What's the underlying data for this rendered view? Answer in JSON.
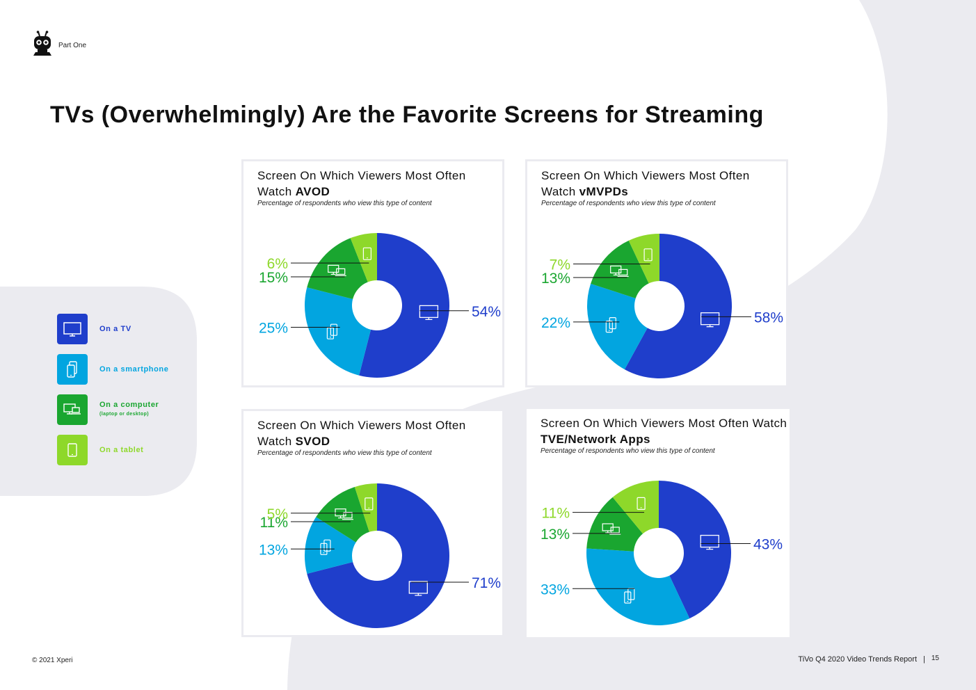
{
  "header": {
    "section": "Part One",
    "logo_icon": "tivo-robot-icon"
  },
  "title": "TVs (Overwhelmingly) Are the Favorite Screens for Streaming",
  "colors": {
    "tv": "#1f3ecb",
    "smartphone": "#02a5e0",
    "computer": "#1aa630",
    "tablet": "#8ed82a",
    "background_shape": "#ebebf0"
  },
  "legend": [
    {
      "key": "tv",
      "label": "On a TV",
      "sub": "",
      "icon": "tv-icon",
      "color": "#1f3ecb"
    },
    {
      "key": "smartphone",
      "label": "On a smartphone",
      "sub": "",
      "icon": "smartphone-icon",
      "color": "#02a5e0"
    },
    {
      "key": "computer",
      "label": "On a computer",
      "sub": "(laptop or desktop)",
      "icon": "computer-icon",
      "color": "#1aa630"
    },
    {
      "key": "tablet",
      "label": "On a tablet",
      "sub": "",
      "icon": "tablet-icon",
      "color": "#8ed82a"
    }
  ],
  "chart_data": [
    {
      "type": "pie",
      "subtype": "donut",
      "title_prefix": "Screen On Which Viewers Most Often Watch",
      "title_bold": "AVOD",
      "subtitle": "Percentage of respondents who view this type of content",
      "categories": [
        "On a TV",
        "On a smartphone",
        "On a computer",
        "On a tablet"
      ],
      "values": [
        54,
        25,
        15,
        6
      ],
      "labels": [
        "54%",
        "25%",
        "15%",
        "6%"
      ]
    },
    {
      "type": "pie",
      "subtype": "donut",
      "title_prefix": "Screen On Which Viewers Most Often Watch",
      "title_bold": "vMVPDs",
      "subtitle": "Percentage of respondents who view this type of content",
      "categories": [
        "On a TV",
        "On a smartphone",
        "On a computer",
        "On a tablet"
      ],
      "values": [
        58,
        22,
        13,
        7
      ],
      "labels": [
        "58%",
        "22%",
        "13%",
        "7%"
      ]
    },
    {
      "type": "pie",
      "subtype": "donut",
      "title_prefix": "Screen On Which Viewers Most Often Watch",
      "title_bold": "SVOD",
      "subtitle": "Percentage of respondents who view this type of content",
      "categories": [
        "On a TV",
        "On a smartphone",
        "On a computer",
        "On a tablet"
      ],
      "values": [
        71,
        13,
        11,
        5
      ],
      "labels": [
        "71%",
        "13%",
        "11%",
        "5%"
      ]
    },
    {
      "type": "pie",
      "subtype": "donut",
      "title_prefix": "Screen On Which Viewers Most Often Watch",
      "title_bold": "TVE/Network Apps",
      "subtitle": "Percentage of respondents who view this type of content",
      "categories": [
        "On a TV",
        "On a smartphone",
        "On a computer",
        "On a tablet"
      ],
      "values": [
        43,
        33,
        13,
        11
      ],
      "labels": [
        "43%",
        "33%",
        "13%",
        "11%"
      ]
    }
  ],
  "footer": {
    "copyright": "© 2021 Xperi",
    "report": "TiVo Q4 2020 Video Trends Report",
    "separator": "|",
    "page": "15"
  }
}
